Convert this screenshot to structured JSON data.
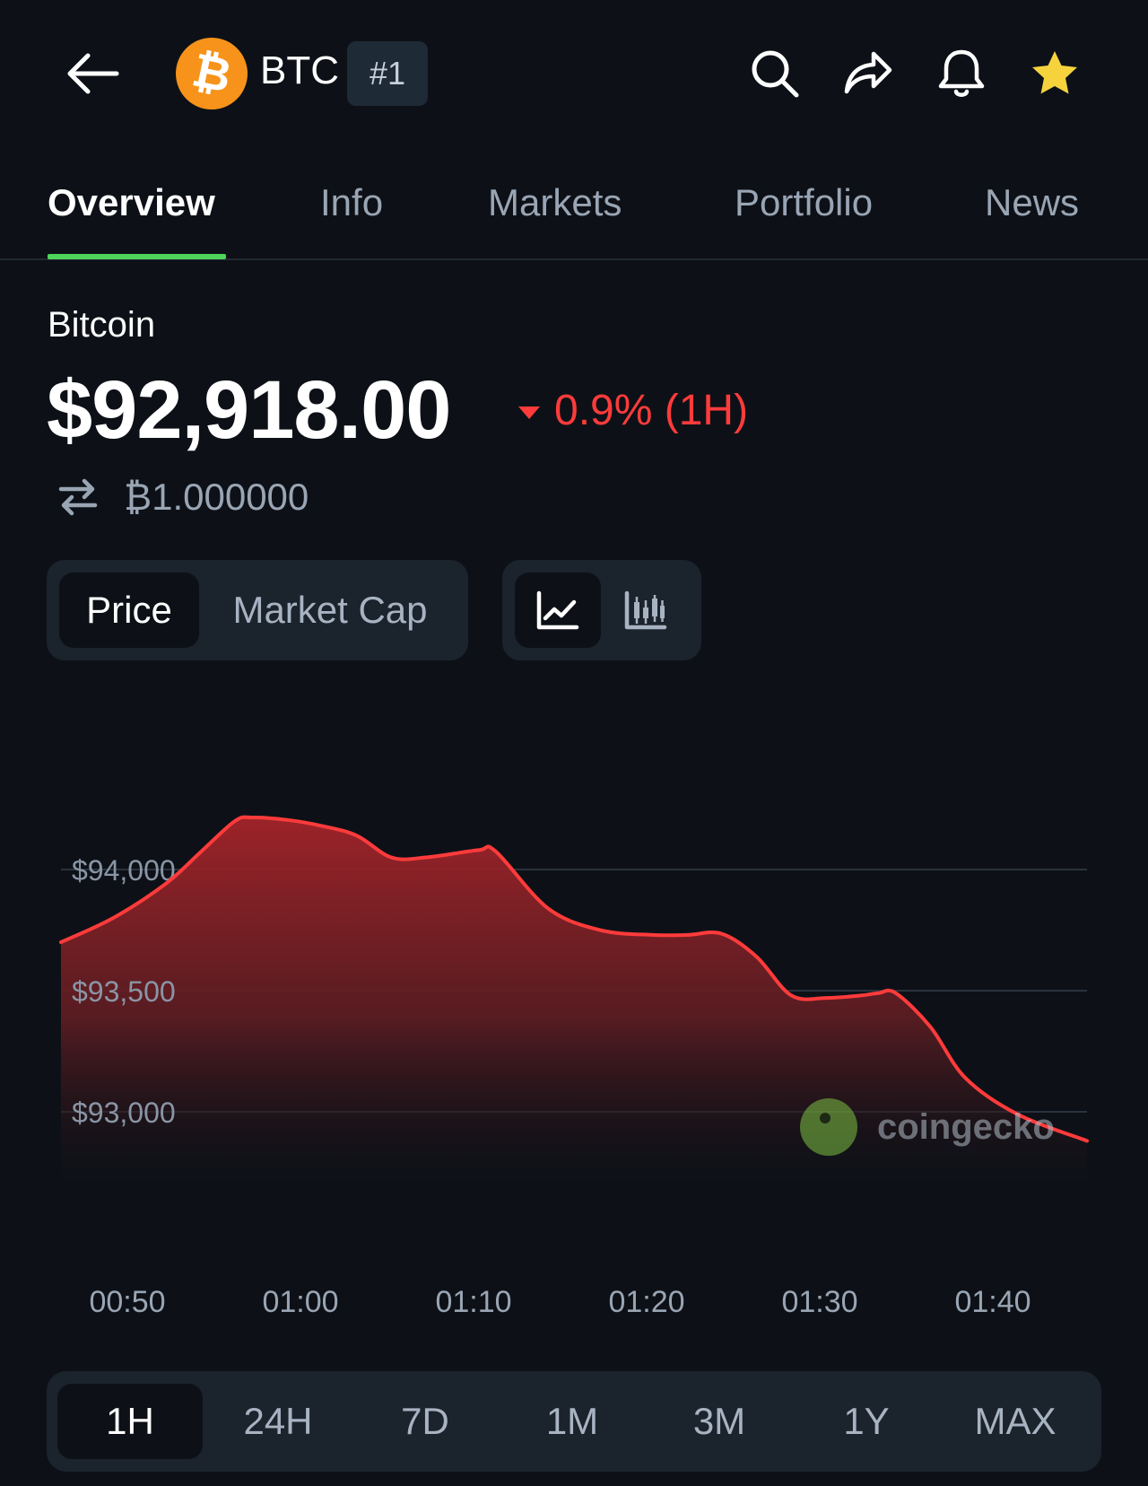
{
  "header": {
    "symbol": "BTC",
    "rank": "#1",
    "coin_logo_glyph": "₿",
    "icons": [
      "back-arrow-icon",
      "search-icon",
      "share-icon",
      "bell-icon",
      "star-icon"
    ],
    "star_color": "#f6d33d",
    "logo_color": "#f7931a"
  },
  "tabs": [
    {
      "label": "Overview",
      "active": true
    },
    {
      "label": "Info"
    },
    {
      "label": "Markets"
    },
    {
      "label": "Portfolio"
    },
    {
      "label": "News"
    }
  ],
  "coin": {
    "name": "Bitcoin",
    "price": "$92,918.00",
    "change": "0.9% (1H)",
    "change_direction": "down",
    "change_color": "#ff3b3b",
    "btc_amount": "₿1.000000",
    "convert_icon": "swap-arrows-icon"
  },
  "toggles": {
    "metric": [
      "Price",
      "Market Cap"
    ],
    "metric_selected": "Price",
    "chart_types": [
      "line-chart-icon",
      "candlestick-chart-icon"
    ],
    "chart_type_selected": "line-chart-icon"
  },
  "chart_data": {
    "type": "area",
    "title": "",
    "xlabel": "",
    "ylabel": "",
    "x_tick_labels": [
      "00:50",
      "01:00",
      "01:10",
      "01:20",
      "01:30",
      "01:40"
    ],
    "y_tick_labels": [
      "$94,000",
      "$93,500",
      "$93,000"
    ],
    "y_ticks": [
      94000,
      93500,
      93000
    ],
    "ylim": [
      92700,
      94700
    ],
    "xlim": [
      0,
      59
    ],
    "grid": true,
    "line_color": "#ff3b3b",
    "series": [
      {
        "points": [
          [
            0,
            93700
          ],
          [
            3,
            93800
          ],
          [
            6,
            93940
          ],
          [
            8,
            94070
          ],
          [
            10,
            94200
          ],
          [
            11,
            94215
          ],
          [
            13,
            94205
          ],
          [
            15,
            94180
          ],
          [
            17,
            94140
          ],
          [
            19,
            94050
          ],
          [
            21,
            94050
          ],
          [
            24,
            94080
          ],
          [
            25,
            94075
          ],
          [
            28,
            93840
          ],
          [
            31,
            93750
          ],
          [
            34,
            93730
          ],
          [
            36,
            93730
          ],
          [
            38,
            93735
          ],
          [
            40,
            93640
          ],
          [
            42,
            93480
          ],
          [
            44,
            93470
          ],
          [
            46,
            93480
          ],
          [
            47,
            93490
          ],
          [
            48,
            93490
          ],
          [
            50,
            93350
          ],
          [
            52,
            93140
          ],
          [
            55,
            92990
          ],
          [
            59,
            92880
          ]
        ]
      }
    ],
    "watermark": "coingecko"
  },
  "ranges": {
    "options": [
      "1H",
      "24H",
      "7D",
      "1M",
      "3M",
      "1Y",
      "MAX"
    ],
    "selected": "1H"
  },
  "colors": {
    "background": "#0d1117",
    "accent_green": "#4dd45b"
  }
}
